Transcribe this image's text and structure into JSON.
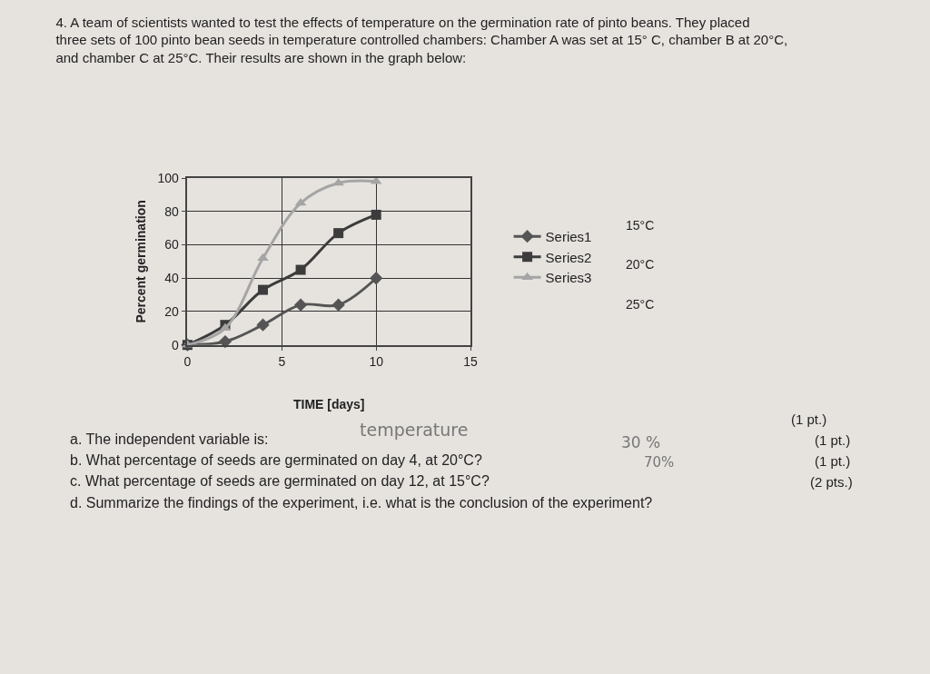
{
  "chart_data": {
    "type": "line",
    "title": "4. A team of scientists wanted to test the effects of temperature on the germination rate of pinto beans. They placed three sets of 100 pinto bean seeds in temperature controlled chambers: Chamber A was set at 15° C, chamber B at 20°C, and chamber C at 25°C. Their results are shown in the graph below:",
    "xlabel": "TIME [days]",
    "ylabel": "Percent germination",
    "x": [
      0,
      2,
      4,
      6,
      8,
      10
    ],
    "series": [
      {
        "name": "Series1",
        "color": "#555555",
        "marker": "diamond",
        "values": [
          0,
          2,
          12,
          24,
          24,
          40
        ]
      },
      {
        "name": "Series2",
        "color": "#3c3c3c",
        "marker": "square",
        "values": [
          0,
          12,
          33,
          45,
          67,
          78
        ]
      },
      {
        "name": "Series3",
        "color": "#a5a5a5",
        "marker": "triangle",
        "values": [
          0,
          10,
          52,
          85,
          97,
          98
        ]
      }
    ],
    "xlim": [
      0,
      15
    ],
    "xticks": [
      0,
      5,
      10,
      15
    ],
    "ylim": [
      0,
      100
    ],
    "yticks": [
      0,
      20,
      40,
      60,
      80,
      100
    ],
    "grid": true,
    "legend": "right",
    "line_style": "solid",
    "annotations": [
      "15°C",
      "20°C",
      "25°C",
      "a. The independent variable is:",
      "temperature",
      "(1 pt.)",
      "b. What percentage of seeds are germinated on day 4, at 20°C?",
      "30 %",
      "(1 pt.)",
      "c. What percentage of seeds are germinated on day 12, at 15°C?",
      "70%",
      "(1 pt.)",
      "d. Summarize the findings of the experiment, i.e. what is the conclusion of the experiment?",
      "(2 pts.)"
    ]
  }
}
